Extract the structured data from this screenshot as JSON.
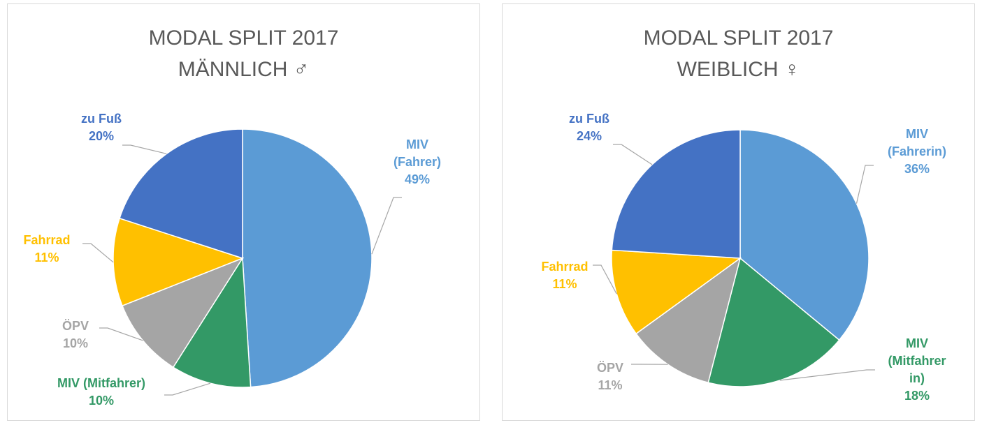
{
  "chart_data": [
    {
      "type": "pie",
      "title": "MODAL SPLIT 2017",
      "subtitle": "MÄNNLICH ♂",
      "categories": [
        "MIV\n(Fahrer)",
        "MIV (Mitfahrer)",
        "ÖPV",
        "Fahrrad",
        "zu Fuß"
      ],
      "values": [
        49,
        10,
        10,
        11,
        20
      ],
      "value_labels": [
        "49%",
        "10%",
        "10%",
        "11%",
        "20%"
      ],
      "colors": [
        "#5b9bd5",
        "#339966",
        "#a5a5a5",
        "#ffc000",
        "#4472c4"
      ]
    },
    {
      "type": "pie",
      "title": "MODAL SPLIT 2017",
      "subtitle": "WEIBLICH ♀",
      "categories": [
        "MIV\n(Fahrerin)",
        "MIV\n(Mitfahrer\nin)",
        "ÖPV",
        "Fahrrad",
        "zu Fuß"
      ],
      "values": [
        36,
        18,
        11,
        11,
        24
      ],
      "value_labels": [
        "36%",
        "18%",
        "11%",
        "11%",
        "24%"
      ],
      "colors": [
        "#5b9bd5",
        "#339966",
        "#a5a5a5",
        "#ffc000",
        "#4472c4"
      ]
    }
  ]
}
